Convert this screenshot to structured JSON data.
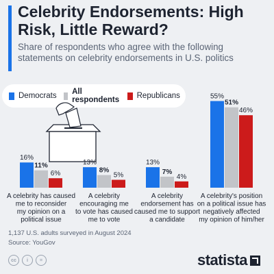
{
  "header": {
    "title": "Celebrity Endorsements: High Risk, Little Reward?",
    "subtitle": "Share of respondents who agree with the following statements on celebrity endorsements in U.S. politics",
    "accent_color": "#1a73e8"
  },
  "legend": [
    {
      "label": "Democrats",
      "color": "#1a73e8",
      "bold": false
    },
    {
      "label": "All respondents",
      "color": "#c2c4c8",
      "bold": true
    },
    {
      "label": "Republicans",
      "color": "#cc1b1b",
      "bold": false
    }
  ],
  "chart_data": {
    "type": "bar",
    "title": "Celebrity Endorsements: High Risk, Little Reward?",
    "ylabel": "",
    "xlabel": "",
    "unit": "%",
    "ylim": [
      0,
      55
    ],
    "grid": false,
    "legend_position": "top-left",
    "categories": [
      "A celebrity has caused me to reconsider my opinion on a political issue",
      "A celebrity encouraging me to vote has caused me to vote",
      "A celebrity endorsement has caused me to support a candidate",
      "A celebrity's position on a political issue has negatively affected my opinion of him/her"
    ],
    "category_lines": [
      [
        "A celebrity has caused",
        "me to reconsider",
        "my opinion on a",
        "political issue"
      ],
      [
        "A celebrity",
        "encouraging me",
        "to vote has caused",
        "me to vote"
      ],
      [
        "A celebrity",
        "endorsement has",
        "caused me to support",
        "a candidate"
      ],
      [
        "A celebrity's position",
        "on a political issue has",
        "negatively affected",
        "my opinion of him/her"
      ]
    ],
    "series": [
      {
        "name": "Democrats",
        "values": [
          16,
          13,
          13,
          55
        ],
        "color": "#1a73e8"
      },
      {
        "name": "All respondents",
        "values": [
          11,
          8,
          7,
          51
        ],
        "color": "#c2c4c8"
      },
      {
        "name": "Republicans",
        "values": [
          6,
          5,
          4,
          46
        ],
        "color": "#cc1b1b"
      }
    ]
  },
  "footer": {
    "note": "1,137 U.S. adults surveyed in August 2024",
    "source": "Source: YouGov",
    "license_icons": [
      "cc-icon",
      "person-icon",
      "equals-icon"
    ],
    "brand": "statista"
  }
}
